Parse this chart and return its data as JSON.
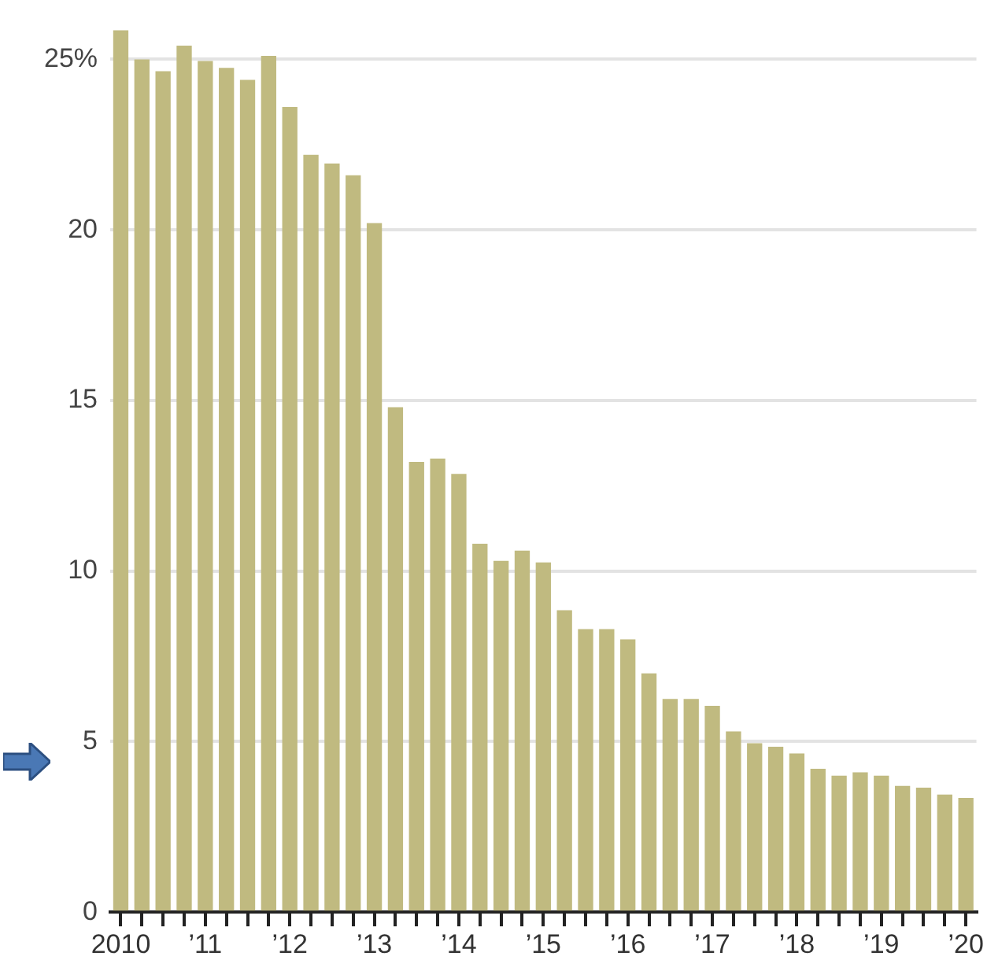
{
  "chart_data": {
    "type": "bar",
    "categories": [
      "2010",
      null,
      null,
      null,
      "’11",
      null,
      null,
      null,
      "’12",
      null,
      null,
      null,
      "’13",
      null,
      null,
      null,
      "’14",
      null,
      null,
      null,
      "’15",
      null,
      null,
      null,
      "’16",
      null,
      null,
      null,
      "’17",
      null,
      null,
      null,
      "’18",
      null,
      null,
      null,
      "’19",
      null,
      null,
      null,
      "’20"
    ],
    "values": [
      25.85,
      25.0,
      24.65,
      25.4,
      24.95,
      24.75,
      24.4,
      25.1,
      23.6,
      22.2,
      21.95,
      21.6,
      20.2,
      14.8,
      13.2,
      13.3,
      12.85,
      10.8,
      10.3,
      10.6,
      10.25,
      8.85,
      8.3,
      8.3,
      8.0,
      7.0,
      6.25,
      6.25,
      6.05,
      5.3,
      4.95,
      4.85,
      4.65,
      4.2,
      4.0,
      4.1,
      4.0,
      3.7,
      3.65,
      3.45,
      3.35
    ],
    "color": "#c0ba80",
    "ylim": [
      0,
      25.9
    ],
    "yticks": [
      0,
      5,
      10,
      15,
      20,
      {
        "value": 25,
        "label": "25%"
      }
    ],
    "grid": "y"
  }
}
